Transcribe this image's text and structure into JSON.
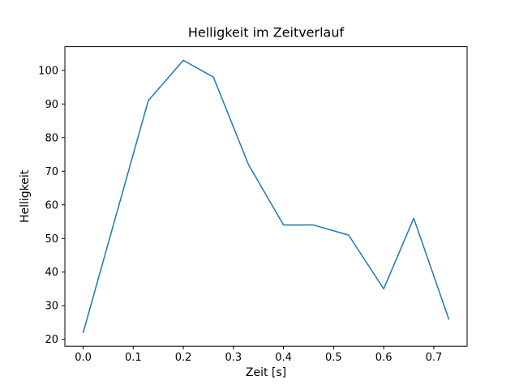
{
  "chart_data": {
    "type": "line",
    "title": "Helligkeit im Zeitverlauf",
    "xlabel": "Zeit [s]",
    "ylabel": "Helligkeit",
    "x": [
      0.0,
      0.13,
      0.2,
      0.26,
      0.33,
      0.4,
      0.46,
      0.53,
      0.6,
      0.66,
      0.73
    ],
    "y": [
      22,
      91,
      103,
      98,
      72,
      54,
      54,
      51,
      35,
      56,
      26
    ],
    "xticks": [
      0.0,
      0.1,
      0.2,
      0.3,
      0.4,
      0.5,
      0.6,
      0.7
    ],
    "yticks": [
      20,
      30,
      40,
      50,
      60,
      70,
      80,
      90,
      100
    ],
    "xtick_labels": [
      "0.0",
      "0.1",
      "0.2",
      "0.3",
      "0.4",
      "0.5",
      "0.6",
      "0.7"
    ],
    "ytick_labels": [
      "20",
      "30",
      "40",
      "50",
      "60",
      "70",
      "80",
      "90",
      "100"
    ],
    "xlim": [
      -0.0365,
      0.7665
    ],
    "ylim": [
      17.95,
      107.05
    ],
    "line_color": "#1f77b4",
    "line_width": 1.5,
    "grid": false,
    "legend": "none",
    "frame_color": "#000000",
    "background_color": "#ffffff"
  }
}
